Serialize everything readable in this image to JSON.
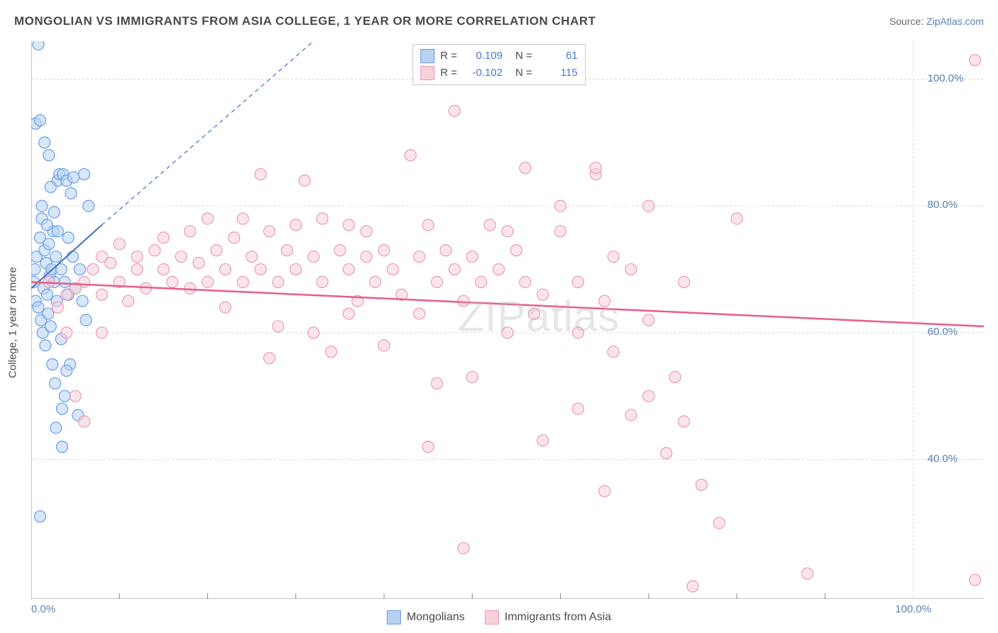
{
  "title": "MONGOLIAN VS IMMIGRANTS FROM ASIA COLLEGE, 1 YEAR OR MORE CORRELATION CHART",
  "source_prefix": "Source: ",
  "source_link": "ZipAtlas.com",
  "y_axis_label": "College, 1 year or more",
  "watermark": "ZIPatlas",
  "chart": {
    "type": "scatter",
    "xlim": [
      0,
      108
    ],
    "ylim": [
      18,
      106
    ],
    "x_ticks": [
      0,
      100
    ],
    "x_tick_labels": [
      "0.0%",
      "100.0%"
    ],
    "y_ticks": [
      40,
      60,
      80,
      100
    ],
    "y_tick_labels": [
      "40.0%",
      "60.0%",
      "80.0%",
      "100.0%"
    ],
    "x_minor_ticks": [
      10,
      20,
      30,
      40,
      50,
      60,
      70,
      80,
      90
    ],
    "grid_color": "#d8d8d8",
    "axis_color": "#888888",
    "background_color": "#ffffff",
    "tick_label_color": "#5b7fb5",
    "marker_radius": 8,
    "marker_stroke_width": 1.2,
    "series": [
      {
        "name": "Mongolians",
        "color_fill": "#b7d1f2",
        "color_stroke": "#6a9de8",
        "r_value": "0.109",
        "n_value": "61",
        "trend": {
          "x1": 0,
          "y1": 67,
          "x2": 8,
          "y2": 77,
          "dash_x2": 32,
          "dash_y2": 106,
          "color": "#3f6fc9",
          "width": 2
        },
        "points": [
          [
            0.3,
            68
          ],
          [
            0.4,
            70
          ],
          [
            0.5,
            65
          ],
          [
            0.6,
            72
          ],
          [
            0.8,
            64
          ],
          [
            1.0,
            75
          ],
          [
            1.1,
            62
          ],
          [
            1.2,
            78
          ],
          [
            1.3,
            60
          ],
          [
            1.4,
            67
          ],
          [
            1.5,
            73
          ],
          [
            1.6,
            58
          ],
          [
            1.7,
            71
          ],
          [
            1.8,
            66
          ],
          [
            1.9,
            63
          ],
          [
            2.0,
            74
          ],
          [
            2.1,
            69
          ],
          [
            2.2,
            61
          ],
          [
            2.3,
            70
          ],
          [
            2.4,
            55
          ],
          [
            2.5,
            76
          ],
          [
            2.6,
            68
          ],
          [
            2.7,
            52
          ],
          [
            2.8,
            72
          ],
          [
            2.9,
            65
          ],
          [
            3.0,
            84
          ],
          [
            3.2,
            85
          ],
          [
            3.4,
            59
          ],
          [
            3.5,
            48
          ],
          [
            3.6,
            85
          ],
          [
            3.8,
            50
          ],
          [
            4.0,
            84
          ],
          [
            4.2,
            75
          ],
          [
            4.4,
            55
          ],
          [
            4.5,
            82
          ],
          [
            4.7,
            72
          ],
          [
            4.8,
            84.5
          ],
          [
            5.0,
            67
          ],
          [
            5.3,
            47
          ],
          [
            5.5,
            70
          ],
          [
            5.8,
            65
          ],
          [
            6.0,
            85
          ],
          [
            6.2,
            62
          ],
          [
            6.5,
            80
          ],
          [
            1.0,
            31
          ],
          [
            2.8,
            45
          ],
          [
            3.5,
            42
          ],
          [
            0.5,
            93
          ],
          [
            1.0,
            93.5
          ],
          [
            0.8,
            105.5
          ],
          [
            1.5,
            90
          ],
          [
            2.0,
            88
          ],
          [
            4.0,
            54
          ],
          [
            1.2,
            80
          ],
          [
            1.8,
            77
          ],
          [
            2.2,
            83
          ],
          [
            2.6,
            79
          ],
          [
            3.0,
            76
          ],
          [
            3.4,
            70
          ],
          [
            3.8,
            68
          ],
          [
            4.2,
            66
          ]
        ]
      },
      {
        "name": "Immigrants from Asia",
        "color_fill": "#f8d0da",
        "color_stroke": "#ea9ab2",
        "r_value": "-0.102",
        "n_value": "115",
        "trend": {
          "x1": 0,
          "y1": 68,
          "x2": 108,
          "y2": 61,
          "color": "#e85d8a",
          "width": 2.5
        },
        "points": [
          [
            2,
            68
          ],
          [
            3,
            64
          ],
          [
            4,
            66
          ],
          [
            4,
            60
          ],
          [
            5,
            67
          ],
          [
            5,
            50
          ],
          [
            6,
            68
          ],
          [
            6,
            46
          ],
          [
            7,
            70
          ],
          [
            8,
            66
          ],
          [
            8,
            72
          ],
          [
            8,
            60
          ],
          [
            9,
            71
          ],
          [
            10,
            68
          ],
          [
            10,
            74
          ],
          [
            11,
            65
          ],
          [
            12,
            70
          ],
          [
            12,
            72
          ],
          [
            13,
            67
          ],
          [
            14,
            73
          ],
          [
            15,
            70
          ],
          [
            15,
            75
          ],
          [
            16,
            68
          ],
          [
            17,
            72
          ],
          [
            18,
            67
          ],
          [
            18,
            76
          ],
          [
            19,
            71
          ],
          [
            20,
            68
          ],
          [
            20,
            78
          ],
          [
            21,
            73
          ],
          [
            22,
            70
          ],
          [
            22,
            64
          ],
          [
            23,
            75
          ],
          [
            24,
            68
          ],
          [
            24,
            78
          ],
          [
            25,
            72
          ],
          [
            26,
            70
          ],
          [
            26,
            85
          ],
          [
            27,
            76
          ],
          [
            28,
            68
          ],
          [
            28,
            61
          ],
          [
            29,
            73
          ],
          [
            30,
            70
          ],
          [
            30,
            77
          ],
          [
            31,
            84
          ],
          [
            32,
            72
          ],
          [
            33,
            68
          ],
          [
            33,
            78
          ],
          [
            34,
            57
          ],
          [
            35,
            73
          ],
          [
            36,
            70
          ],
          [
            36,
            77
          ],
          [
            37,
            65
          ],
          [
            38,
            72
          ],
          [
            38,
            76
          ],
          [
            39,
            68
          ],
          [
            40,
            73
          ],
          [
            40,
            58
          ],
          [
            41,
            70
          ],
          [
            42,
            66
          ],
          [
            43,
            88
          ],
          [
            44,
            72
          ],
          [
            45,
            42
          ],
          [
            45,
            77
          ],
          [
            46,
            68
          ],
          [
            46,
            52
          ],
          [
            47,
            73
          ],
          [
            48,
            70
          ],
          [
            48,
            95
          ],
          [
            49,
            65
          ],
          [
            49,
            26
          ],
          [
            50,
            72
          ],
          [
            51,
            68
          ],
          [
            52,
            77
          ],
          [
            53,
            70
          ],
          [
            54,
            60
          ],
          [
            55,
            73
          ],
          [
            56,
            68
          ],
          [
            56,
            86
          ],
          [
            57,
            63
          ],
          [
            58,
            43
          ],
          [
            60,
            76
          ],
          [
            60,
            80
          ],
          [
            62,
            68
          ],
          [
            62,
            48
          ],
          [
            64,
            85
          ],
          [
            64,
            86
          ],
          [
            65,
            65
          ],
          [
            65,
            35
          ],
          [
            66,
            72
          ],
          [
            68,
            70
          ],
          [
            68,
            47
          ],
          [
            70,
            62
          ],
          [
            70,
            80
          ],
          [
            72,
            41
          ],
          [
            73,
            53
          ],
          [
            74,
            68
          ],
          [
            75,
            20
          ],
          [
            76,
            36
          ],
          [
            78,
            30
          ],
          [
            80,
            78
          ],
          [
            88,
            22
          ],
          [
            107,
            103
          ],
          [
            107,
            21
          ],
          [
            27,
            56
          ],
          [
            32,
            60
          ],
          [
            36,
            63
          ],
          [
            44,
            63
          ],
          [
            50,
            53
          ],
          [
            54,
            76
          ],
          [
            58,
            66
          ],
          [
            62,
            60
          ],
          [
            66,
            57
          ],
          [
            70,
            50
          ],
          [
            74,
            46
          ]
        ]
      }
    ]
  },
  "legend_top": {
    "r_label": "R =",
    "n_label": "N ="
  },
  "legend_bottom": [
    {
      "label": "Mongolians",
      "fill": "#b7d1f2",
      "stroke": "#6a9de8"
    },
    {
      "label": "Immigrants from Asia",
      "fill": "#f8d0da",
      "stroke": "#ea9ab2"
    }
  ]
}
